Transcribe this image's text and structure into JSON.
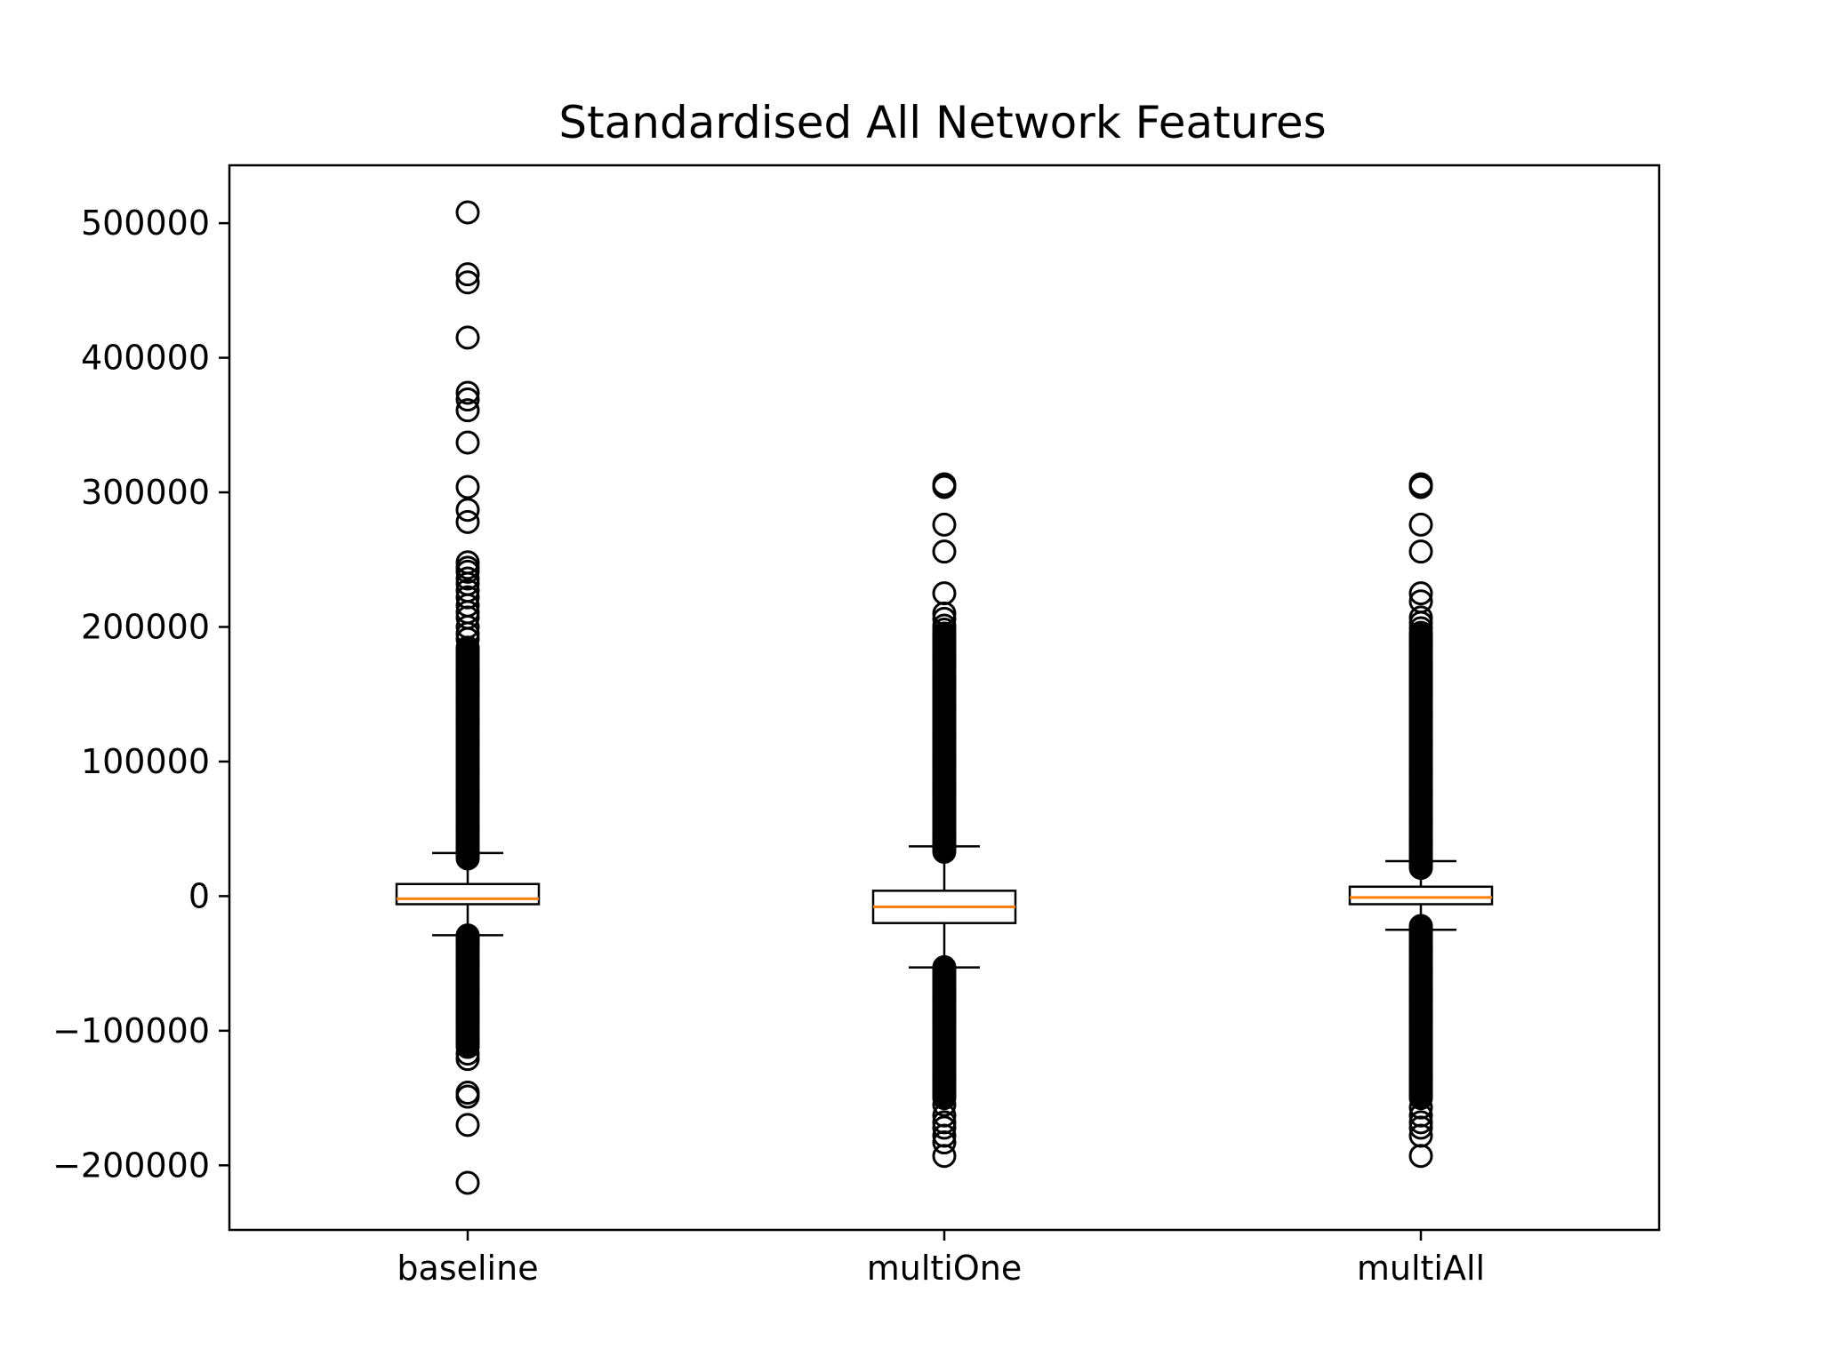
{
  "chart_data": {
    "type": "box",
    "title": "Standardised All Network Features",
    "xlabel": "",
    "ylabel": "",
    "categories": [
      "baseline",
      "multiOne",
      "multiAll"
    ],
    "ylim": [
      -248000,
      543000
    ],
    "yticks": [
      {
        "value": 500000,
        "label": "500000"
      },
      {
        "value": 400000,
        "label": "400000"
      },
      {
        "value": 300000,
        "label": "300000"
      },
      {
        "value": 200000,
        "label": "200000"
      },
      {
        "value": 100000,
        "label": "100000"
      },
      {
        "value": 0,
        "label": "0"
      },
      {
        "value": -100000,
        "label": "−100000"
      },
      {
        "value": -200000,
        "label": "−200000"
      }
    ],
    "grid": false,
    "legend": "none",
    "colors": {
      "box": "#000000",
      "median": "#ff7f0e",
      "flier": "#000000"
    },
    "boxes": [
      {
        "name": "baseline",
        "whisker_low": -29000,
        "q1": -6000,
        "median": -2000,
        "q3": 9000,
        "whisker_high": 32000,
        "outlier_bands": [
          [
            28000,
            185000
          ],
          [
            -112000,
            -28000
          ]
        ],
        "outliers": [
          508000,
          462000,
          456000,
          415000,
          374000,
          369000,
          361000,
          337000,
          304000,
          287000,
          278000,
          248000,
          244000,
          241000,
          236000,
          232000,
          227000,
          222000,
          216000,
          211000,
          207000,
          200000,
          195000,
          191000,
          -117000,
          -121000,
          -146000,
          -149000,
          -170000,
          -213000
        ]
      },
      {
        "name": "multiOne",
        "whisker_low": -53000,
        "q1": -20000,
        "median": -8000,
        "q3": 4000,
        "whisker_high": 37000,
        "outlier_bands": [
          [
            33000,
            196000
          ],
          [
            -150000,
            -52000
          ]
        ],
        "outliers": [
          306000,
          304000,
          276000,
          256000,
          225000,
          210000,
          206000,
          201000,
          198000,
          -155000,
          -163000,
          -168000,
          -172000,
          -178000,
          -183000,
          -193000
        ]
      },
      {
        "name": "multiAll",
        "whisker_low": -25000,
        "q1": -6000,
        "median": -1000,
        "q3": 7000,
        "whisker_high": 26000,
        "outlier_bands": [
          [
            21000,
            196000
          ],
          [
            -150000,
            -21000
          ]
        ],
        "outliers": [
          306000,
          304000,
          276000,
          256000,
          225000,
          219000,
          207000,
          203000,
          199000,
          -157000,
          -163000,
          -168000,
          -172000,
          -178000,
          -193000
        ]
      }
    ]
  }
}
